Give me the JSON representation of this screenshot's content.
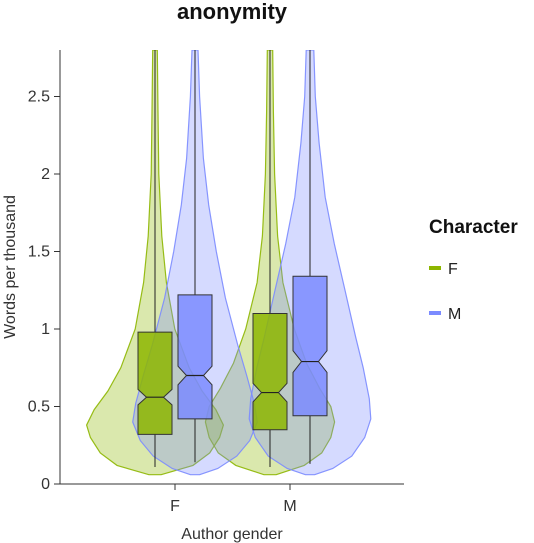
{
  "chart_data": {
    "type": "violin",
    "title": "anonymity",
    "xlabel": "Author gender",
    "ylabel": "Words per thousand",
    "categories": [
      "F",
      "M"
    ],
    "ylim": [
      0,
      2.8
    ],
    "yticks": [
      0,
      0.5,
      1,
      1.5,
      2,
      2.5
    ],
    "ytick_labels": [
      "0",
      "0.5",
      "1",
      "1.5",
      "2",
      "2.5"
    ],
    "legend": {
      "title": "Character",
      "position": "right",
      "entries": [
        "F",
        "M"
      ]
    },
    "series": [
      {
        "name": "F",
        "color": "#8db600",
        "boxes": [
          {
            "category": "F",
            "q1": 0.32,
            "median": 0.56,
            "q3": 0.98,
            "notch_low": 0.51,
            "notch_high": 0.61,
            "whisker_low": 0.11,
            "whisker_high": 2.8
          },
          {
            "category": "M",
            "q1": 0.35,
            "median": 0.59,
            "q3": 1.1,
            "notch_low": 0.53,
            "notch_high": 0.65,
            "whisker_low": 0.11,
            "whisker_high": 2.8
          }
        ],
        "violins": [
          {
            "category": "F",
            "ymin": 0.06,
            "ymax": 2.8,
            "density": [
              [
                0.06,
                0.08
              ],
              [
                0.12,
                0.5
              ],
              [
                0.2,
                0.72
              ],
              [
                0.3,
                0.85
              ],
              [
                0.38,
                0.9
              ],
              [
                0.48,
                0.8
              ],
              [
                0.6,
                0.62
              ],
              [
                0.75,
                0.45
              ],
              [
                1.0,
                0.26
              ],
              [
                1.3,
                0.15
              ],
              [
                1.6,
                0.09
              ],
              [
                2.0,
                0.05
              ],
              [
                2.4,
                0.04
              ],
              [
                2.8,
                0.03
              ]
            ]
          },
          {
            "category": "M",
            "ymin": 0.06,
            "ymax": 2.8,
            "density": [
              [
                0.06,
                0.08
              ],
              [
                0.12,
                0.45
              ],
              [
                0.2,
                0.68
              ],
              [
                0.3,
                0.8
              ],
              [
                0.4,
                0.85
              ],
              [
                0.5,
                0.8
              ],
              [
                0.62,
                0.65
              ],
              [
                0.78,
                0.48
              ],
              [
                1.0,
                0.32
              ],
              [
                1.3,
                0.17
              ],
              [
                1.6,
                0.1
              ],
              [
                2.0,
                0.06
              ],
              [
                2.4,
                0.045
              ],
              [
                2.8,
                0.035
              ]
            ]
          }
        ]
      },
      {
        "name": "M",
        "color": "#7b8bff",
        "boxes": [
          {
            "category": "F",
            "q1": 0.42,
            "median": 0.7,
            "q3": 1.22,
            "notch_low": 0.64,
            "notch_high": 0.76,
            "whisker_low": 0.14,
            "whisker_high": 2.8
          },
          {
            "category": "M",
            "q1": 0.44,
            "median": 0.79,
            "q3": 1.34,
            "notch_low": 0.72,
            "notch_high": 0.86,
            "whisker_low": 0.13,
            "whisker_high": 2.8
          }
        ],
        "violins": [
          {
            "category": "F",
            "ymin": 0.06,
            "ymax": 2.8,
            "density": [
              [
                0.06,
                0.06
              ],
              [
                0.1,
                0.3
              ],
              [
                0.18,
                0.55
              ],
              [
                0.28,
                0.72
              ],
              [
                0.4,
                0.82
              ],
              [
                0.52,
                0.78
              ],
              [
                0.7,
                0.68
              ],
              [
                0.9,
                0.56
              ],
              [
                1.2,
                0.4
              ],
              [
                1.5,
                0.28
              ],
              [
                1.8,
                0.18
              ],
              [
                2.1,
                0.11
              ],
              [
                2.5,
                0.06
              ],
              [
                2.8,
                0.04
              ]
            ]
          },
          {
            "category": "M",
            "ymin": 0.06,
            "ymax": 2.8,
            "density": [
              [
                0.06,
                0.06
              ],
              [
                0.1,
                0.3
              ],
              [
                0.18,
                0.55
              ],
              [
                0.3,
                0.72
              ],
              [
                0.42,
                0.8
              ],
              [
                0.55,
                0.78
              ],
              [
                0.75,
                0.7
              ],
              [
                0.95,
                0.6
              ],
              [
                1.25,
                0.46
              ],
              [
                1.55,
                0.32
              ],
              [
                1.85,
                0.2
              ],
              [
                2.2,
                0.12
              ],
              [
                2.5,
                0.07
              ],
              [
                2.8,
                0.05
              ]
            ]
          }
        ]
      }
    ]
  }
}
